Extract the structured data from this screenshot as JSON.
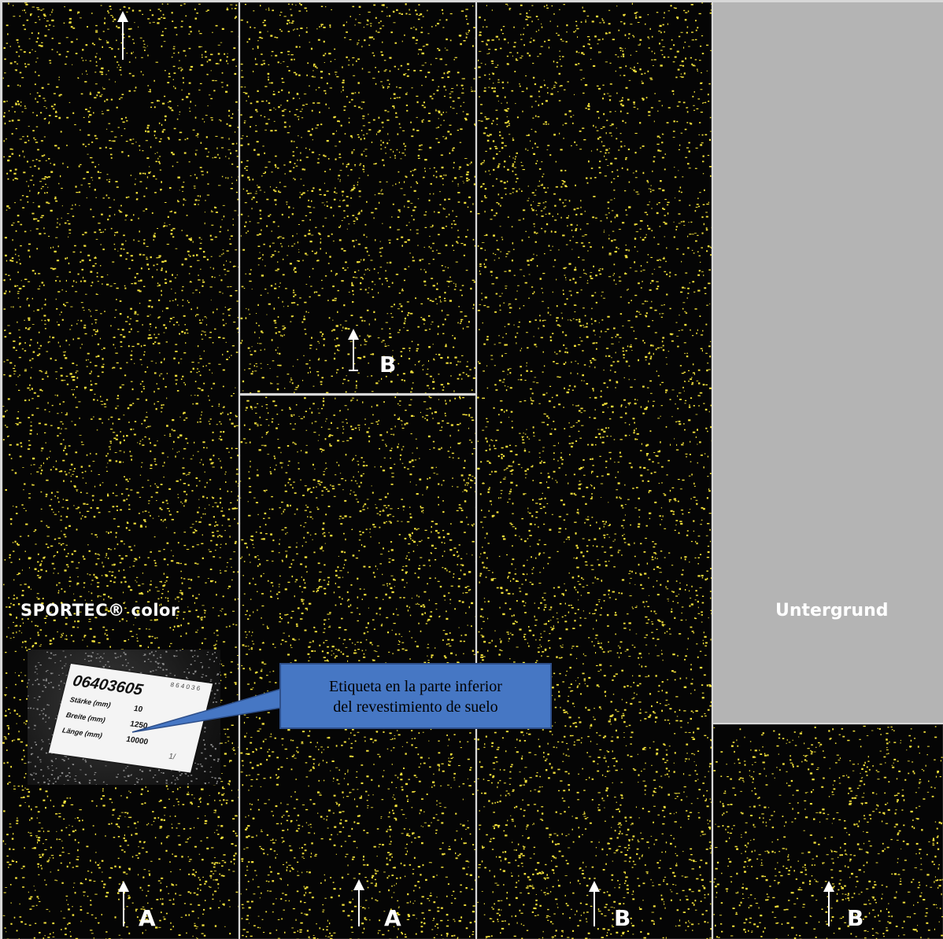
{
  "product_label": "SPORTEC® color",
  "subfloor_label": "Untergrund",
  "callout": {
    "line1": "Etiqueta en la parte inferior",
    "line2": "del revestimiento de suelo"
  },
  "markers": {
    "col1_bottom": "A",
    "col2_top": "B",
    "col2_bottom": "A",
    "col3_bottom": "B",
    "col4_bottom": "B"
  },
  "tag": {
    "code": "06403605",
    "small": "8 6 4 0 3 6",
    "rows": [
      {
        "label": "Stärke (mm)",
        "value": "10"
      },
      {
        "label": "Breite (mm)",
        "value": "1250"
      },
      {
        "label": "Länge (mm)",
        "value": "10000"
      }
    ],
    "sign": "1/"
  },
  "colors": {
    "panel": "#050505",
    "speckle": "#f2e03a",
    "subfloor": "#b4b4b4",
    "callout_fill": "#4677c4"
  }
}
